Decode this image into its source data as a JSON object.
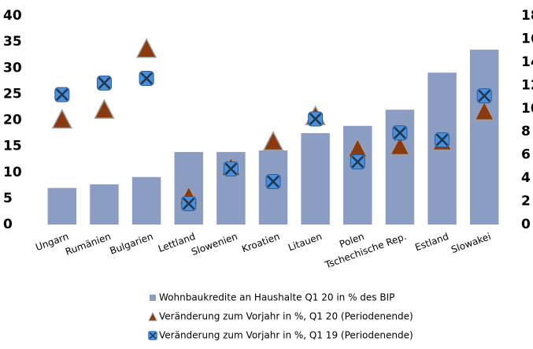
{
  "chart_data": {
    "type": "bar",
    "categories": [
      "Ungarn",
      "Rumänien",
      "Bulgarien",
      "Lettland",
      "Slowenien",
      "Kroatien",
      "Litauen",
      "Polen",
      "Tschechische Rep.",
      "Estland",
      "Slowakei"
    ],
    "series": [
      {
        "name": "Wohnbaukredite an Haushalte Q1 20 in % des BIP",
        "type": "bar",
        "color": "#8b9dc3",
        "axis": "y",
        "values": [
          7,
          7.7,
          9.1,
          13.9,
          13.9,
          14.2,
          17.5,
          18.9,
          22.0,
          29.1,
          33.5
        ]
      },
      {
        "name": "Veränderung zum Vorjahr in %, Q1 20 (Periodenende)",
        "type": "scatter",
        "marker": "triangle",
        "color": "#8b3a0f",
        "axis": "y2",
        "values": [
          9.0,
          9.85,
          15.1,
          2.4,
          4.9,
          7.1,
          9.3,
          6.5,
          6.7,
          7.1,
          9.7
        ]
      },
      {
        "name": "Veränderung zum Vorjahr in %, Q1 19 (Periodenende)",
        "type": "scatter",
        "marker": "cross-square",
        "color": "#4a90d9",
        "axis": "y2",
        "values": [
          11.2,
          12.2,
          12.6,
          1.8,
          4.8,
          3.7,
          9.1,
          5.4,
          7.9,
          7.3,
          11.1
        ]
      }
    ],
    "ylim": [
      0,
      40
    ],
    "yticks": [
      0,
      5,
      10,
      15,
      20,
      25,
      30,
      35,
      40
    ],
    "y2lim": [
      0,
      18
    ],
    "y2ticks": [
      0,
      2,
      4,
      6,
      8,
      10,
      12,
      14,
      16,
      18
    ],
    "grid": false
  }
}
